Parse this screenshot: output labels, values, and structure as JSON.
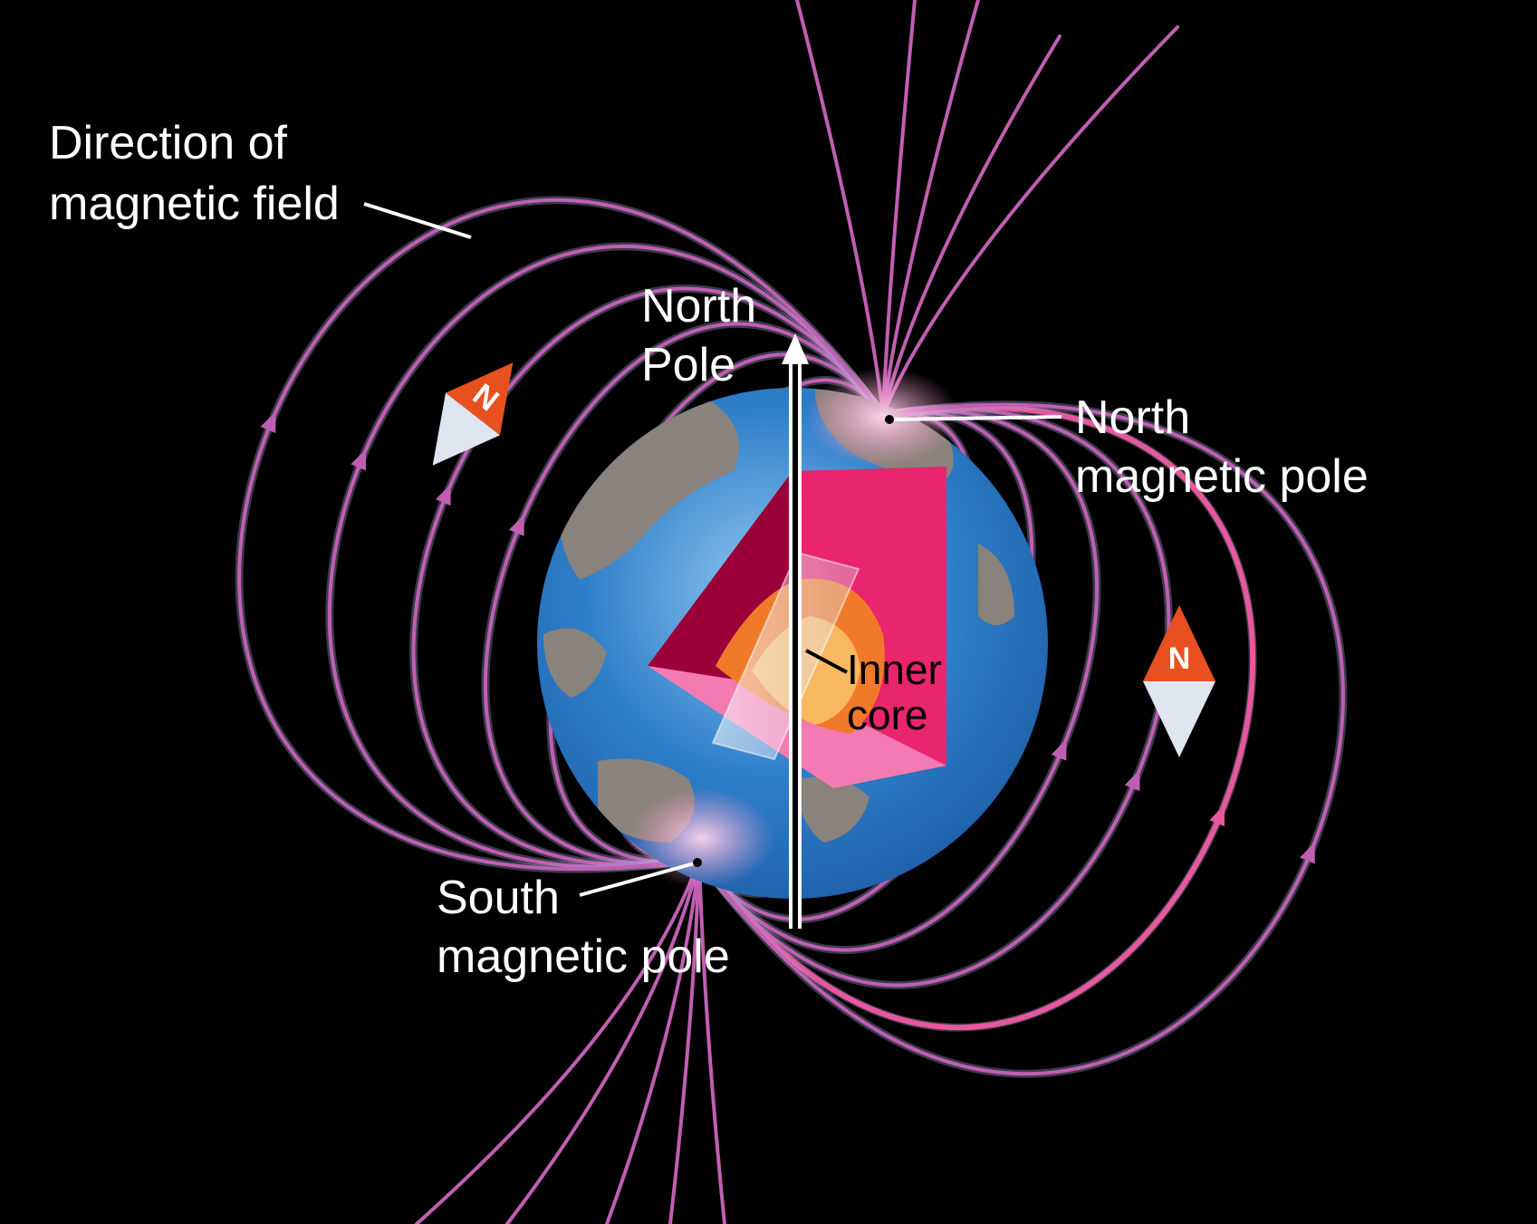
{
  "labels": {
    "direction_line1": "Direction of",
    "direction_line2": "magnetic field",
    "north_pole_line1": "North",
    "north_pole_line2": "Pole",
    "north_mag_line1": "North",
    "north_mag_line2": "magnetic pole",
    "south_mag_line1": "South",
    "south_mag_line2": "magnetic pole",
    "inner_core_line1": "Inner",
    "inner_core_line2": "core"
  },
  "compasses": {
    "left_letter": "N",
    "right_letter": "N"
  },
  "colors": {
    "background": "#000000",
    "field_line": "#c05fb2",
    "field_line_glow": "#a9a6d6",
    "highlight_line": "#e8589e",
    "ocean": "#2f7fc9",
    "land": "#8a827c",
    "crust": "#9b0039",
    "mantle": "#e8256d",
    "outer_core": "#f07a2a",
    "inner_core": "#f8b860",
    "compass_red": "#e8511f",
    "compass_white": "#dfe6f2"
  }
}
